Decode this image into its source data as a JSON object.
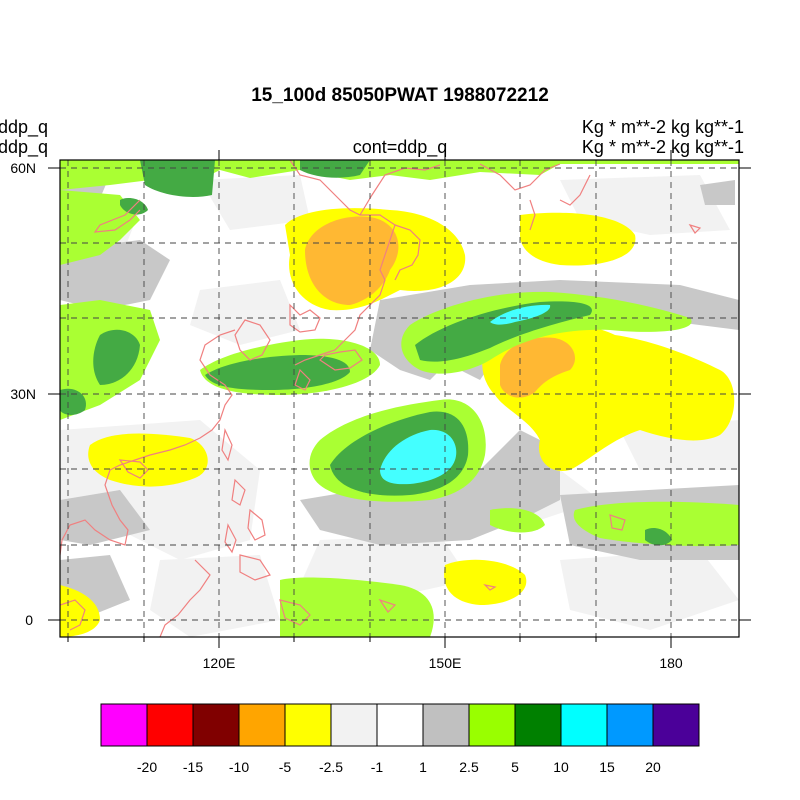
{
  "header": {
    "title": "15_100d 85050PWAT  1988072212",
    "left_line1": "ddp_q",
    "left_line2": "ddp_q",
    "center": "cont=ddp_q",
    "units_line1": "Kg  * m**-2 kg kg**-1",
    "units_line2": "Kg  * m**-2 kg kg**-1"
  },
  "map": {
    "lon_range": [
      100,
      190
    ],
    "lat_range": [
      -3,
      61
    ],
    "lat_tick_labels": [
      {
        "lat": 60,
        "label": "60N"
      },
      {
        "lat": 30,
        "label": "30N"
      },
      {
        "lat": 0,
        "label": "0"
      }
    ],
    "lon_tick_labels": [
      {
        "lon": 120,
        "label": "120E"
      },
      {
        "lon": 150,
        "label": "150E"
      },
      {
        "lon": 180,
        "label": "180"
      }
    ],
    "coastline_color": "#f08080",
    "grid_style": "dashed"
  },
  "colorbar": {
    "colors": [
      "#ff00ff",
      "#ff0000",
      "#800000",
      "#ffa500",
      "#ffff00",
      "#f2f2f2",
      "#ffffff",
      "#c0c0c0",
      "#99ff00",
      "#008000",
      "#00ffff",
      "#0099ff",
      "#4b0099"
    ],
    "labels": [
      "-20",
      "-15",
      "-10",
      "-5",
      "-2.5",
      "-1",
      "1",
      "2.5",
      "5",
      "10",
      "15",
      "20"
    ]
  }
}
